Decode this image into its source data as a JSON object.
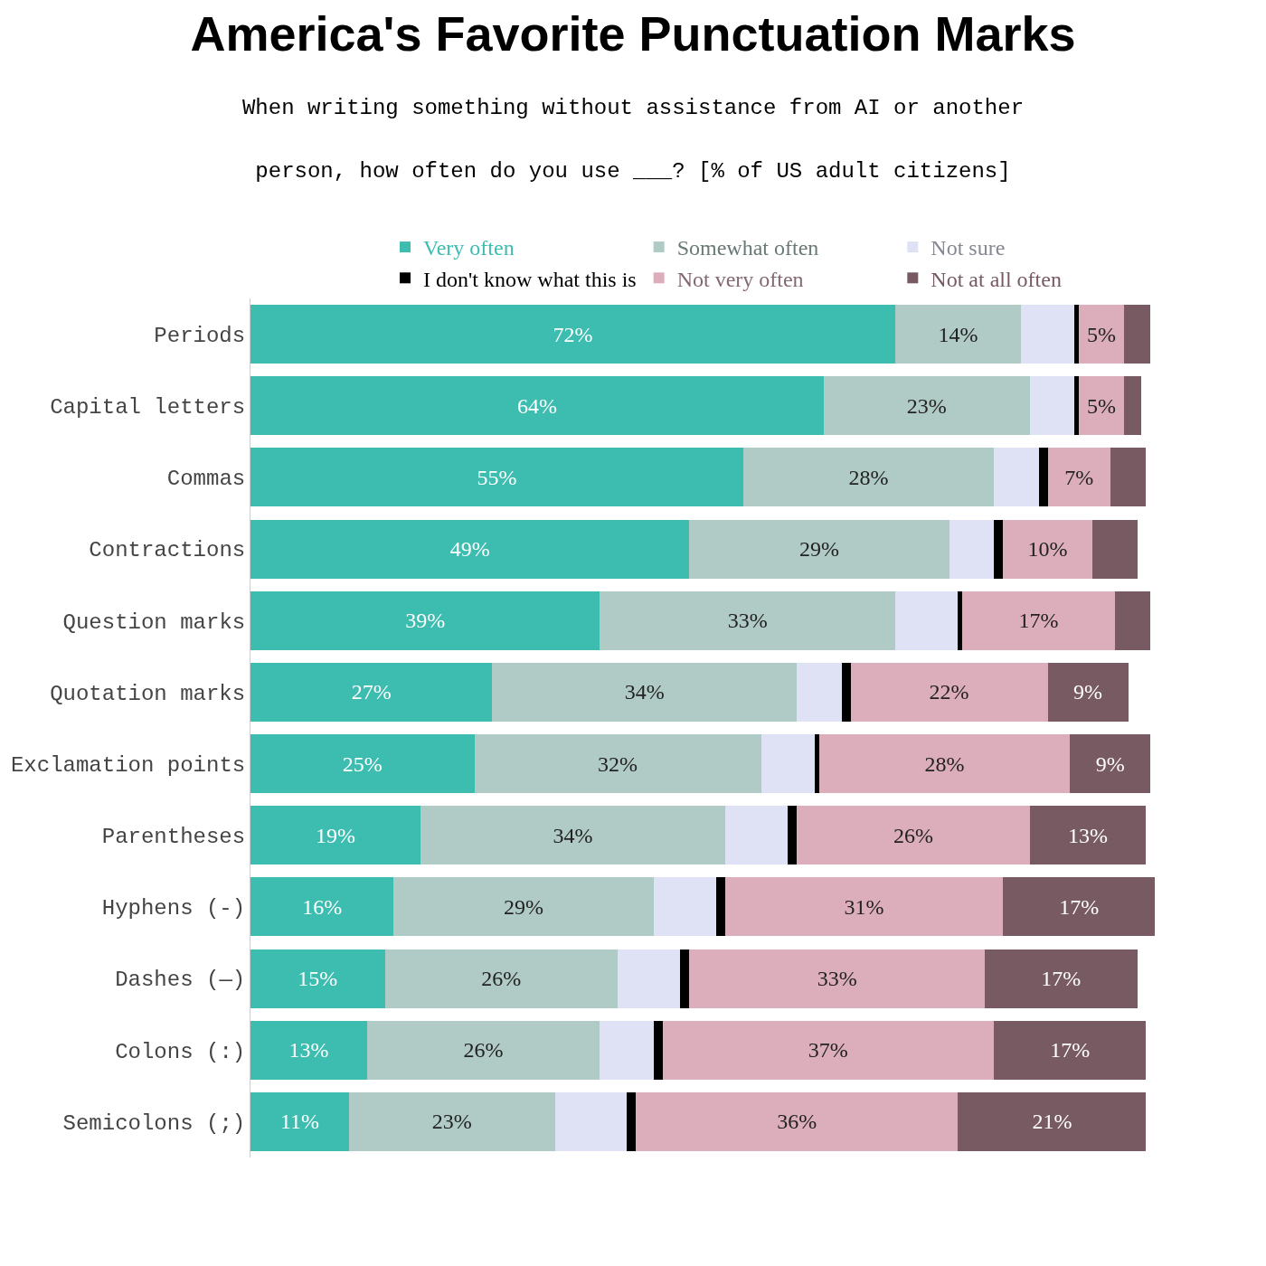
{
  "chart_data": {
    "type": "bar",
    "orientation": "horizontal",
    "stacked": true,
    "title": "America's Favorite Punctuation Marks",
    "subtitle": "When writing something without assistance from AI or another person, how often do you use ___? [% of US adult citizens]",
    "categories": [
      "Periods",
      "Capital letters",
      "Commas",
      "Contractions",
      "Question marks",
      "Quotation marks",
      "Exclamation points",
      "Parentheses",
      "Hyphens (-)",
      "Dashes (—)",
      "Colons (:)",
      "Semicolons (;)"
    ],
    "series": [
      {
        "name": "Very often",
        "color": "#3dbcb0",
        "values": [
          72,
          64,
          55,
          49,
          39,
          27,
          25,
          19,
          16,
          15,
          13,
          11
        ],
        "value_labels": [
          "72%",
          "64%",
          "55%",
          "49%",
          "39%",
          "27%",
          "25%",
          "19%",
          "16%",
          "15%",
          "13%",
          "11%"
        ]
      },
      {
        "name": "Somewhat often",
        "color": "#b0cac5",
        "values": [
          14,
          23,
          28,
          29,
          33,
          34,
          32,
          34,
          29,
          26,
          26,
          23
        ],
        "value_labels": [
          "14%",
          "23%",
          "28%",
          "29%",
          "33%",
          "34%",
          "32%",
          "34%",
          "29%",
          "26%",
          "26%",
          "23%"
        ]
      },
      {
        "name": "Not sure",
        "color": "#dfe2f5",
        "values": [
          6,
          5,
          5,
          5,
          7,
          5,
          6,
          7,
          7,
          7,
          6,
          8
        ]
      },
      {
        "name": "I don't know what this is",
        "color": "#000000",
        "values": [
          0.5,
          0.5,
          1,
          1,
          0.5,
          1,
          0.5,
          1,
          1,
          1,
          1,
          1
        ]
      },
      {
        "name": "Not very often",
        "color": "#dcaebb",
        "values": [
          5,
          5,
          7,
          10,
          17,
          22,
          28,
          26,
          31,
          33,
          37,
          36
        ],
        "value_labels": [
          "5%",
          "5%",
          "7%",
          "10%",
          "17%",
          "22%",
          "28%",
          "26%",
          "31%",
          "33%",
          "37%",
          "36%"
        ]
      },
      {
        "name": "Not at all often",
        "color": "#775a62",
        "values": [
          3,
          2,
          4,
          5,
          4,
          9,
          9,
          13,
          17,
          17,
          17,
          21
        ],
        "value_labels": [
          null,
          null,
          null,
          null,
          null,
          "9%",
          "9%",
          "13%",
          "17%",
          "17%",
          "17%",
          "21%"
        ]
      }
    ],
    "legend": "top"
  }
}
